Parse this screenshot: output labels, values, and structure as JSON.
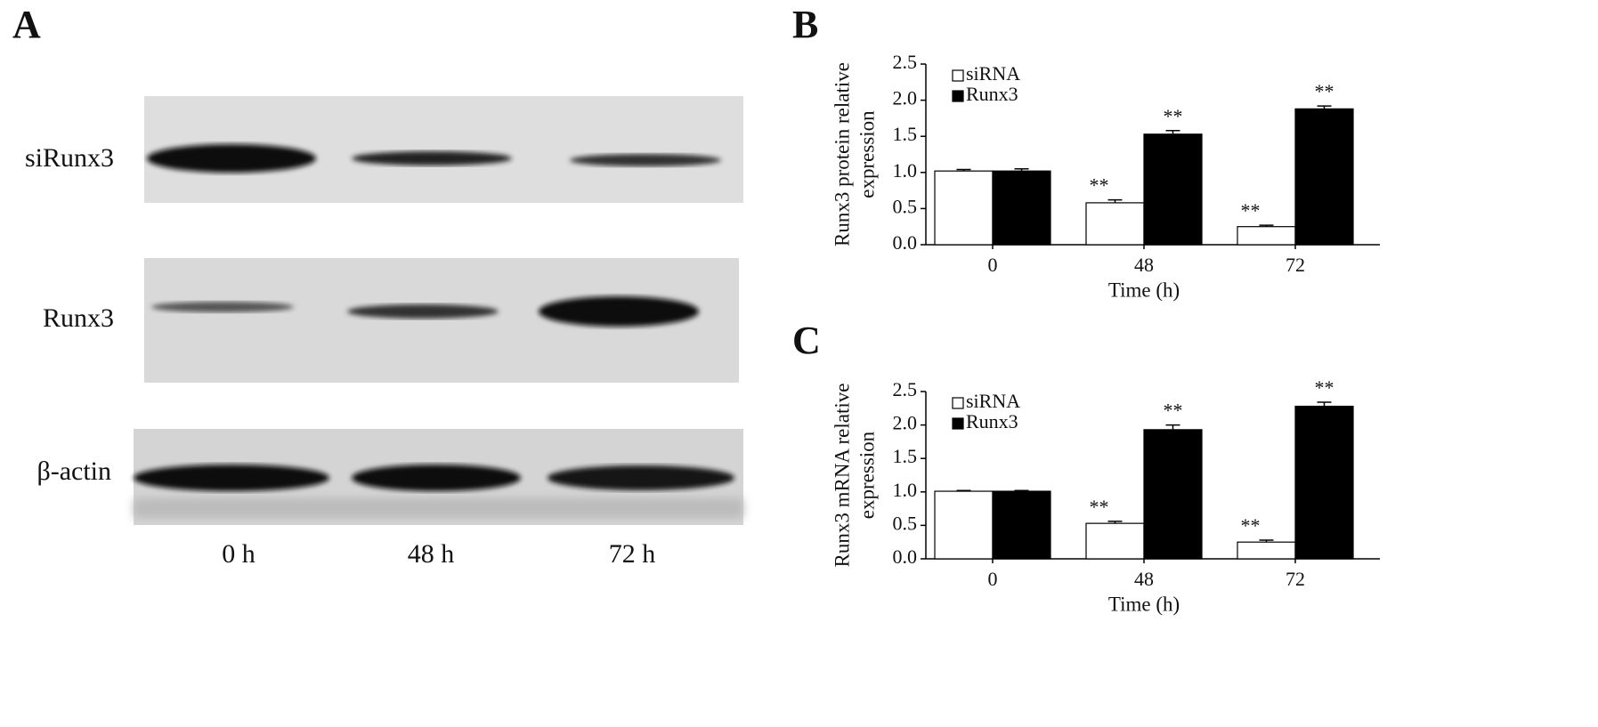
{
  "blot": {
    "panel": "A",
    "rows": [
      "siRunx3",
      "Runx3",
      "β-actin"
    ],
    "lanes": [
      "0 h",
      "48 h",
      "72 h"
    ]
  },
  "chart_data": [
    {
      "type": "bar",
      "panel": "B",
      "ylabel": [
        "Runx3 protein relative",
        "expression"
      ],
      "xlabel": "Time (h)",
      "categories": [
        "0",
        "48",
        "72"
      ],
      "series": [
        {
          "name": "siRNA",
          "color": "#ffffff",
          "values": [
            1.02,
            0.58,
            0.25
          ],
          "errors": [
            0.02,
            0.04,
            0.02
          ],
          "annotations": [
            null,
            "**",
            "**"
          ]
        },
        {
          "name": "Runx3",
          "color": "#000000",
          "values": [
            1.02,
            1.53,
            1.88
          ],
          "errors": [
            0.03,
            0.05,
            0.04
          ],
          "annotations": [
            null,
            "**",
            "**"
          ]
        }
      ],
      "ylim": [
        0,
        2.5
      ],
      "yticks": [
        {
          "value": 0,
          "label": "0.0"
        },
        0.5,
        {
          "value": 1,
          "label": "1.0"
        },
        1.5,
        {
          "value": 2,
          "label": "2.0"
        },
        2.5
      ],
      "legend": "top-left",
      "grid": false
    },
    {
      "type": "bar",
      "panel": "C",
      "ylabel": [
        "Runx3 mRNA relative",
        "expression"
      ],
      "xlabel": "Time (h)",
      "categories": [
        "0",
        "48",
        "72"
      ],
      "series": [
        {
          "name": "siRNA",
          "color": "#ffffff",
          "values": [
            1.01,
            0.53,
            0.25
          ],
          "errors": [
            0.01,
            0.03,
            0.03
          ],
          "annotations": [
            null,
            "**",
            "**"
          ]
        },
        {
          "name": "Runx3",
          "color": "#000000",
          "values": [
            1.01,
            1.93,
            2.28
          ],
          "errors": [
            0.01,
            0.07,
            0.06
          ],
          "annotations": [
            null,
            "**",
            "**"
          ]
        }
      ],
      "ylim": [
        0,
        2.5
      ],
      "yticks": [
        {
          "value": 0,
          "label": "0.0"
        },
        0.5,
        {
          "value": 1,
          "label": "1.0"
        },
        1.5,
        {
          "value": 2,
          "label": "2.0"
        },
        2.5
      ],
      "legend": "top-left",
      "grid": false
    }
  ]
}
